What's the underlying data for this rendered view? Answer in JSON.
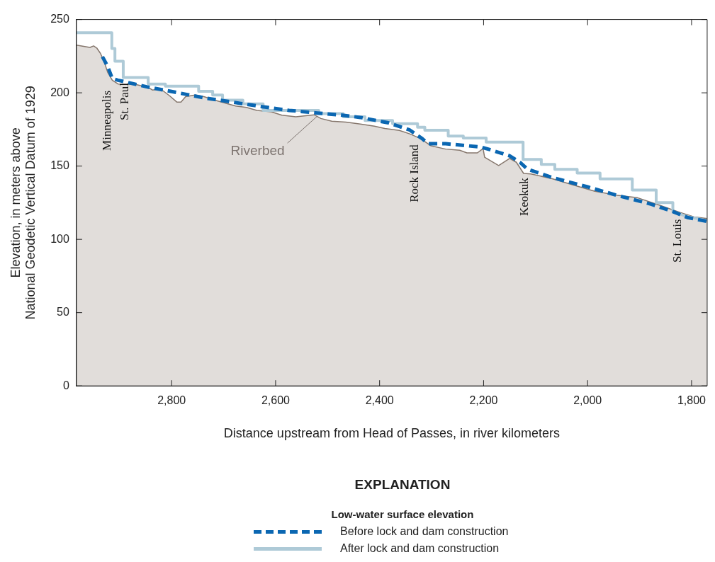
{
  "chart_data": {
    "type": "area",
    "xlabel": "Distance upstream from Head of Passes, in river kilometers",
    "ylabel": "Elevation, in meters above\nNational Geodetic Vertical Datum of 1929",
    "legend_title": "Low-water surface elevation",
    "legend": "bottom",
    "marker": "none",
    "xlim": [
      2983,
      1770
    ],
    "xticks": [
      {
        "value": 2800,
        "label": "2,800"
      },
      {
        "value": 2600,
        "label": "2,600"
      },
      {
        "value": 2400,
        "label": "2,400"
      },
      {
        "value": 2200,
        "label": "2,200"
      },
      {
        "value": 2000,
        "label": "2,000"
      },
      {
        "value": 1800,
        "label": "1,800"
      }
    ],
    "ylim": [
      0,
      250
    ],
    "yticks": [
      0,
      50,
      100,
      150,
      200,
      250
    ],
    "series": [
      {
        "color": "#86776d",
        "x": [
          2983,
          2957,
          2950,
          2944,
          2937,
          2930,
          2923,
          2914,
          2903,
          2868,
          2845,
          2837,
          2821,
          2804,
          2790,
          2782,
          2773,
          2755,
          2738,
          2711,
          2677,
          2656,
          2636,
          2608,
          2588,
          2561,
          2526,
          2513,
          2492,
          2465,
          2437,
          2410,
          2390,
          2362,
          2342,
          2321,
          2301,
          2273,
          2246,
          2232,
          2212,
          2201,
          2198,
          2171,
          2150,
          2137,
          2123,
          2109,
          2068,
          2027,
          1986,
          1945,
          1904,
          1863,
          1822,
          1795,
          1770
        ],
        "values": [
          232.5,
          231,
          232,
          230.6,
          227,
          221.6,
          214,
          208.6,
          206,
          205.6,
          203.7,
          201.9,
          202.6,
          198,
          193.7,
          193.7,
          197.4,
          198.5,
          197.4,
          194.4,
          191,
          190,
          188,
          187,
          184.7,
          183.6,
          185,
          182.5,
          180.6,
          180,
          178.7,
          177.2,
          175.7,
          174.3,
          172,
          168.7,
          163.8,
          161.6,
          160.8,
          159,
          159,
          162,
          156,
          150.4,
          155.2,
          152.6,
          145,
          144.6,
          141.4,
          137,
          132.8,
          130.2,
          128.4,
          123.5,
          118.3,
          115.3,
          114.2
        ]
      },
      {
        "type": "line",
        "name": "Before lock and dam construction",
        "color": "#0b67b2",
        "line_style": "dashed",
        "x": [
          2933,
          2923,
          2914,
          2903,
          2848,
          2793,
          2738,
          2684,
          2629,
          2574,
          2520,
          2479,
          2437,
          2383,
          2342,
          2318,
          2307,
          2273,
          2205,
          2184,
          2150,
          2130,
          2116,
          2068,
          2000,
          1945,
          1877,
          1836,
          1808,
          1770
        ],
        "values": [
          224.6,
          218,
          209.7,
          208.6,
          204.1,
          200.4,
          196.6,
          193.7,
          190.7,
          188,
          186.2,
          185,
          183.2,
          179.5,
          174.6,
          168.7,
          165.3,
          165.3,
          163,
          160.8,
          157,
          152.6,
          148,
          142.2,
          135.8,
          130.2,
          123.9,
          119,
          114.9,
          112.3
        ]
      },
      {
        "type": "line",
        "name": "After lock and dam construction",
        "color": "#aecad7",
        "line_style": "solid",
        "x": [
          2983,
          2915,
          2915,
          2909,
          2909,
          2893,
          2893,
          2845,
          2845,
          2812,
          2812,
          2748,
          2748,
          2721,
          2721,
          2702,
          2702,
          2663,
          2663,
          2624,
          2624,
          2517,
          2517,
          2470,
          2470,
          2428,
          2428,
          2375,
          2375,
          2327,
          2327,
          2313,
          2313,
          2268,
          2268,
          2239,
          2239,
          2195,
          2195,
          2124,
          2124,
          2089,
          2089,
          2063,
          2063,
          2020,
          2020,
          1976,
          1976,
          1914,
          1914,
          1868,
          1868,
          1836,
          1836,
          1808,
          1770
        ],
        "values": [
          241,
          241,
          230.2,
          230.2,
          221.6,
          221.6,
          210.4,
          210.4,
          206,
          206,
          204.5,
          204.5,
          201,
          201,
          198.5,
          198.5,
          195,
          195,
          192.5,
          192.5,
          188,
          188,
          185.8,
          185.8,
          183.6,
          183.6,
          181.1,
          181.1,
          178.9,
          178.9,
          176.5,
          176.5,
          174.5,
          174.5,
          170.5,
          170.5,
          169.2,
          169.2,
          166.4,
          166.4,
          154.5,
          154.5,
          151.1,
          151.1,
          147.8,
          147.8,
          145.2,
          145.2,
          141.2,
          141.2,
          133.6,
          133.6,
          125.1,
          125.1,
          119,
          115.5,
          112.8
        ]
      }
    ],
    "annotations": [
      "EXPLANATION",
      "Minneapolis",
      "St. Paul",
      "Rock Island",
      "Keokuk",
      "St. Louis",
      {
        "text": "Riverbed",
        "x": 2520,
        "y": 185
      }
    ]
  }
}
